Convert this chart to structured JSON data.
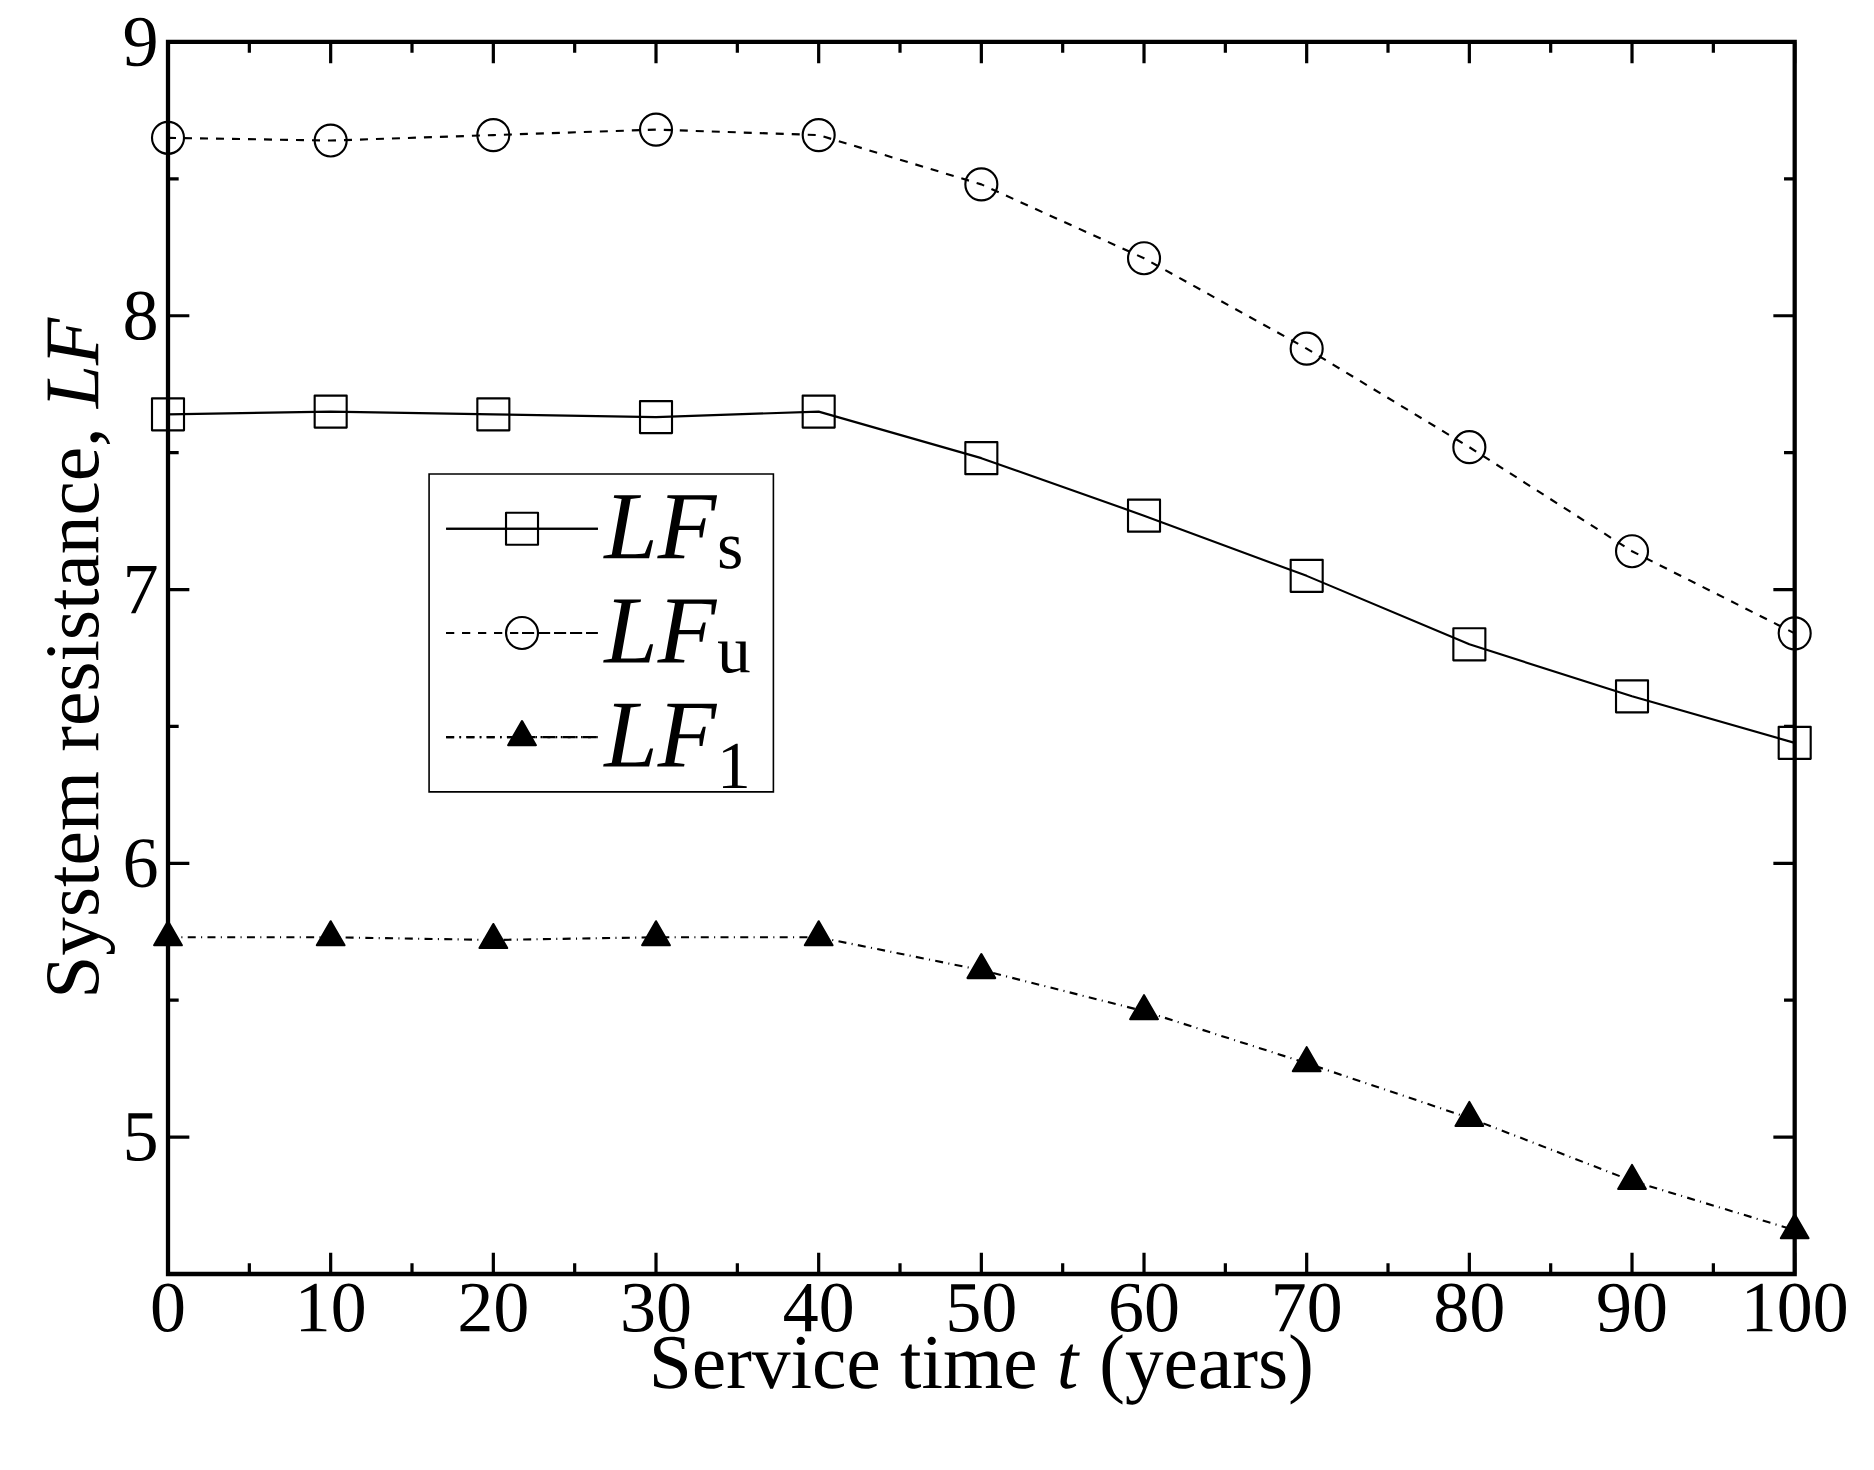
{
  "chart_data": {
    "type": "line",
    "xlabel": "Service time *t* (years)",
    "ylabel": "System resistance, *LF*",
    "x": [
      0,
      10,
      20,
      30,
      40,
      50,
      60,
      70,
      80,
      90,
      100
    ],
    "series": [
      {
        "name": "*LF*$_{s}$",
        "color": "#000000",
        "marker": "square",
        "line_style": "solid",
        "values": [
          7.64,
          7.65,
          7.64,
          7.63,
          7.65,
          7.48,
          7.27,
          7.05,
          6.8,
          6.61,
          6.44
        ]
      },
      {
        "name": "*LF*$_{u}$",
        "color": "#000000",
        "marker": "circle",
        "line_style": "dashed",
        "values": [
          8.65,
          8.64,
          8.66,
          8.68,
          8.66,
          8.48,
          8.21,
          7.88,
          7.52,
          7.14,
          6.84
        ]
      },
      {
        "name": "*LF*$_{1}$",
        "color": "#000000",
        "marker": "triangle",
        "line_style": "dashdot",
        "values": [
          5.73,
          5.73,
          5.72,
          5.73,
          5.73,
          5.61,
          5.46,
          5.27,
          5.07,
          4.84,
          4.66
        ]
      }
    ],
    "xlim": [
      0,
      100
    ],
    "ylim": [
      4.5,
      9
    ],
    "xticks": [
      0,
      10,
      20,
      30,
      40,
      50,
      60,
      70,
      80,
      90,
      100
    ],
    "yticks": [
      5,
      6,
      7,
      8,
      9
    ],
    "grid": false,
    "legend": "left"
  }
}
